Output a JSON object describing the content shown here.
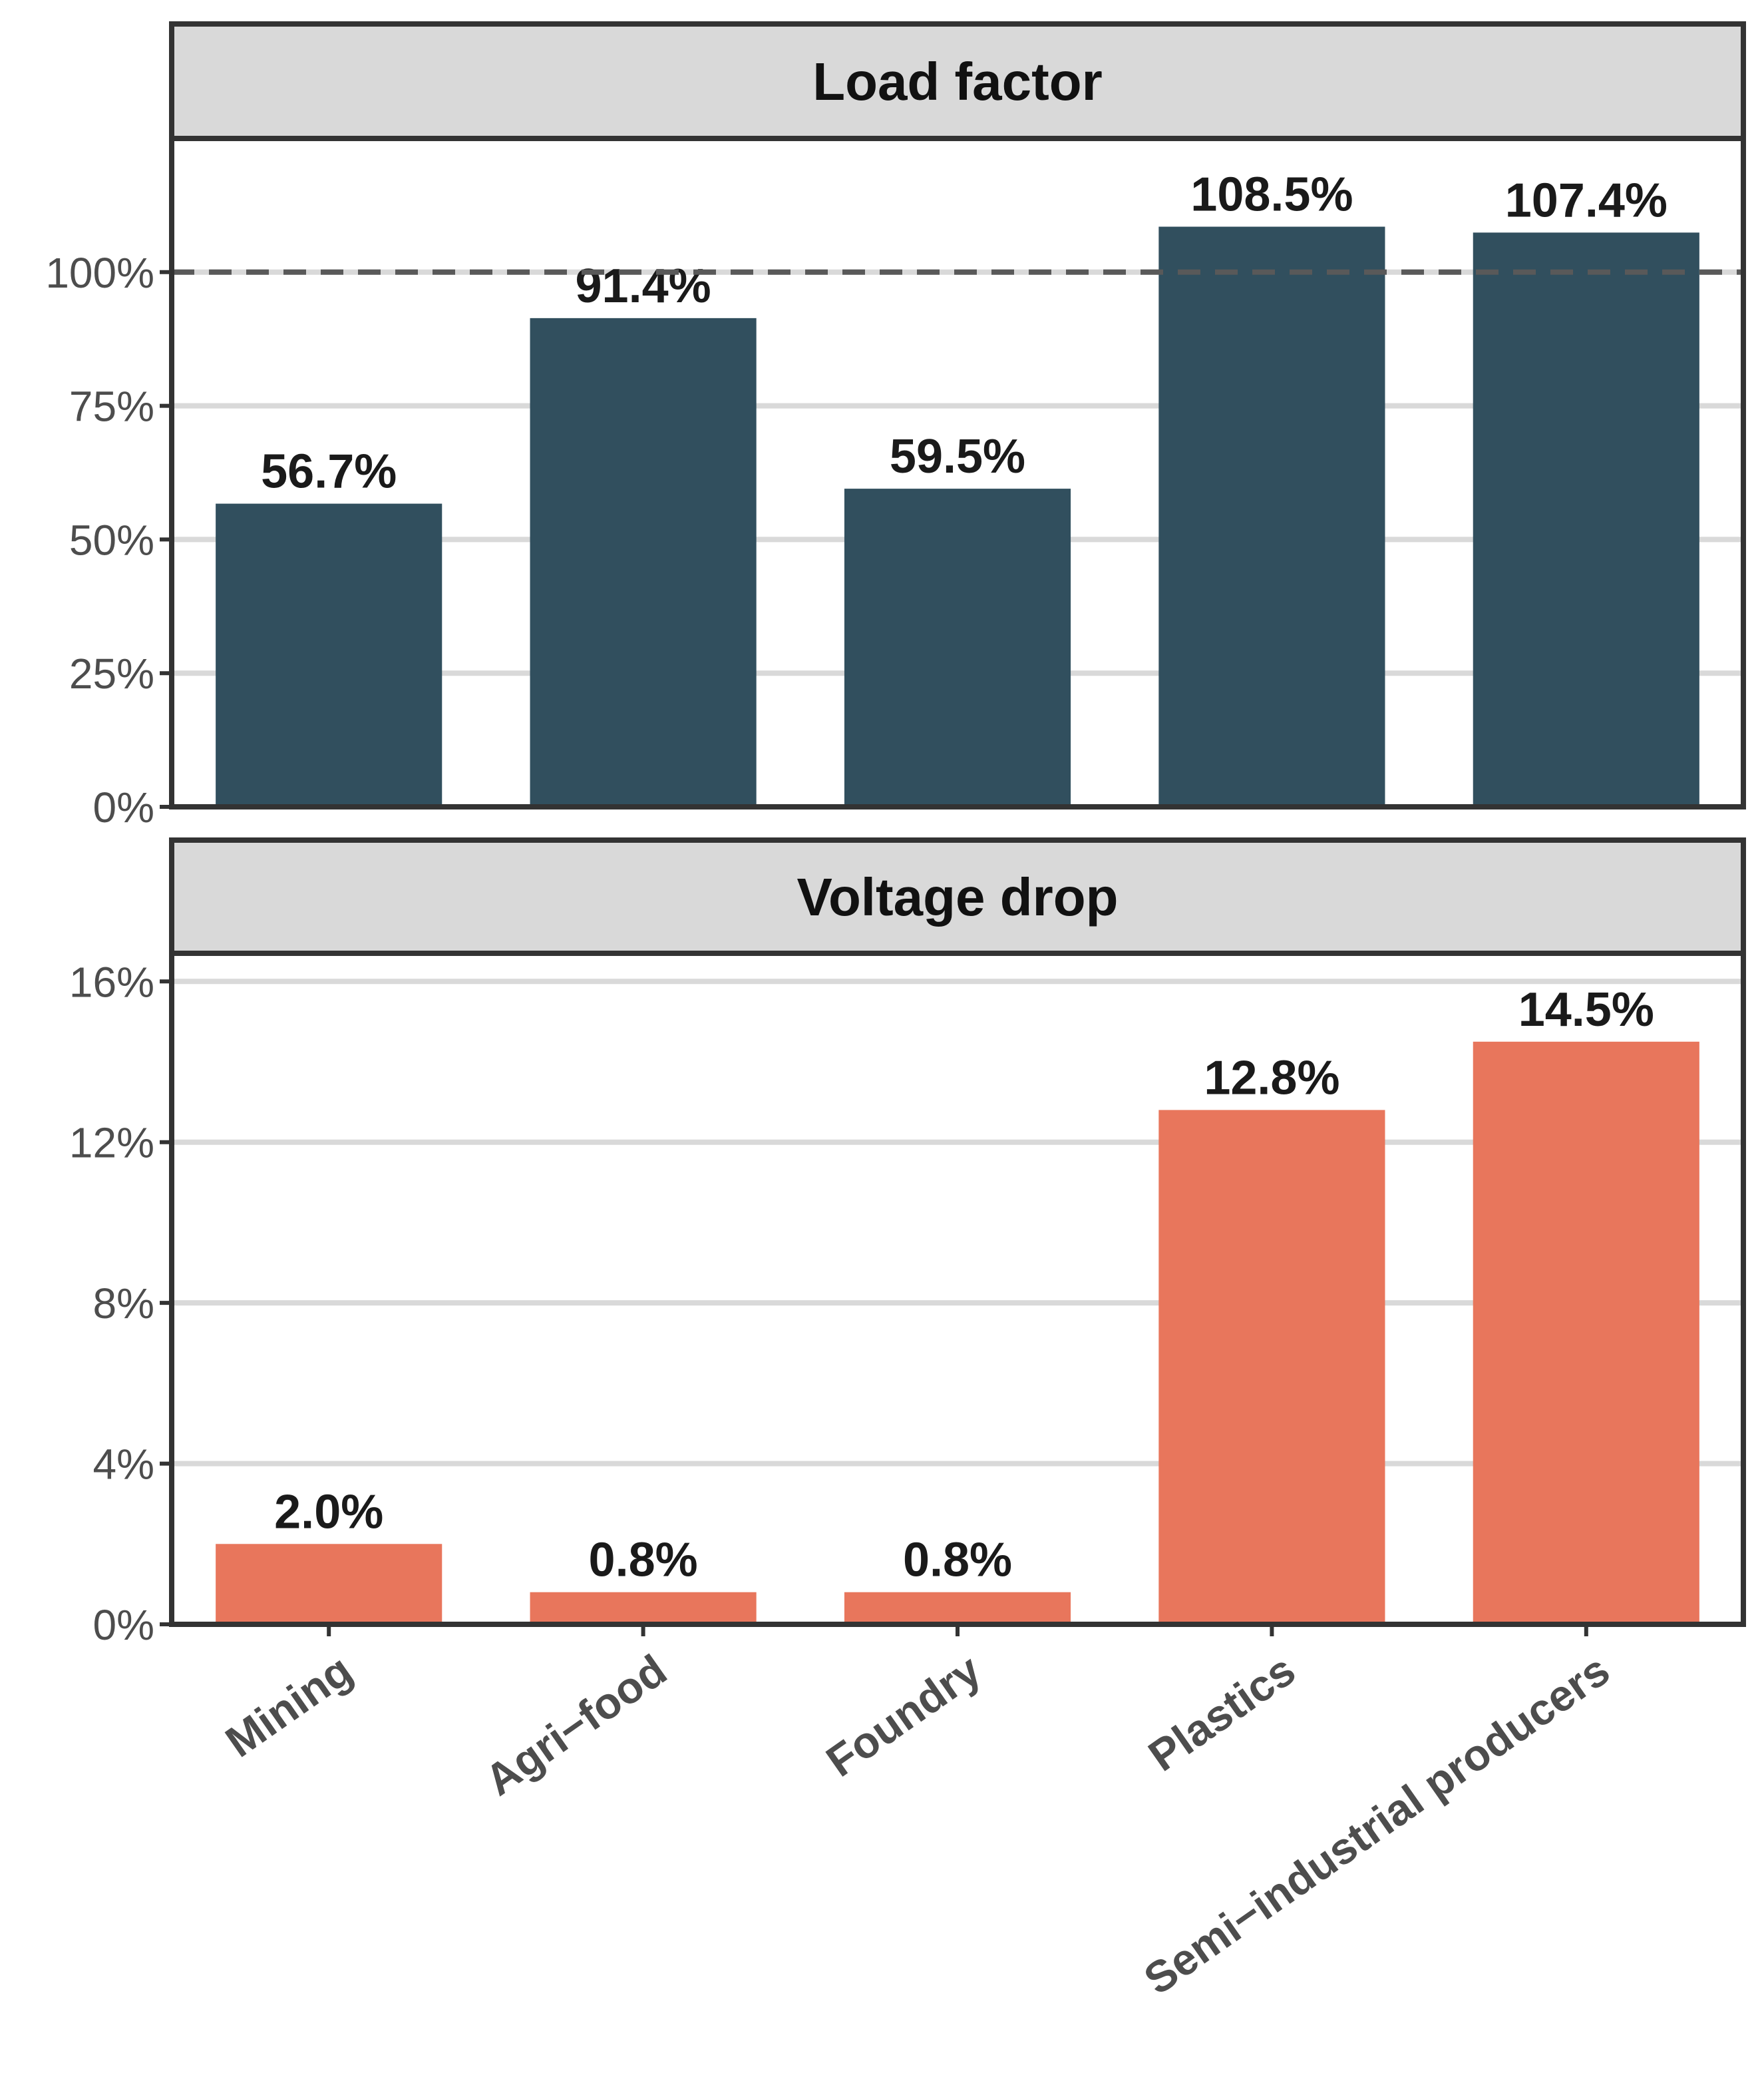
{
  "chart_data": [
    {
      "type": "bar",
      "title": "Load factor",
      "categories": [
        "Mining",
        "Agri−food",
        "Foundry",
        "Plastics",
        "Semi−industrial producers"
      ],
      "values": [
        56.7,
        91.4,
        59.5,
        108.5,
        107.4
      ],
      "data_labels": [
        "56.7%",
        "91.4%",
        "59.5%",
        "108.5%",
        "107.4%"
      ],
      "ylim": [
        0,
        125
      ],
      "yticks": [
        0,
        25,
        50,
        75,
        100
      ],
      "ytick_labels": [
        "0%",
        "25%",
        "50%",
        "75%",
        "100%"
      ],
      "reference_line": 100,
      "grid": true,
      "color": "#314f5e"
    },
    {
      "type": "bar",
      "title": "Voltage drop",
      "categories": [
        "Mining",
        "Agri−food",
        "Foundry",
        "Plastics",
        "Semi−industrial producers"
      ],
      "values": [
        2.0,
        0.8,
        0.8,
        12.8,
        14.5
      ],
      "data_labels": [
        "2.0%",
        "0.8%",
        "0.8%",
        "12.8%",
        "14.5%"
      ],
      "ylim": [
        0,
        16.7
      ],
      "yticks": [
        0,
        4,
        8,
        12,
        16
      ],
      "ytick_labels": [
        "0%",
        "4%",
        "8%",
        "12%",
        "16%"
      ],
      "grid": true,
      "color": "#e8765c"
    }
  ],
  "x_axis": {
    "categories": [
      "Mining",
      "Agri−food",
      "Foundry",
      "Plastics",
      "Semi−industrial producers"
    ]
  }
}
